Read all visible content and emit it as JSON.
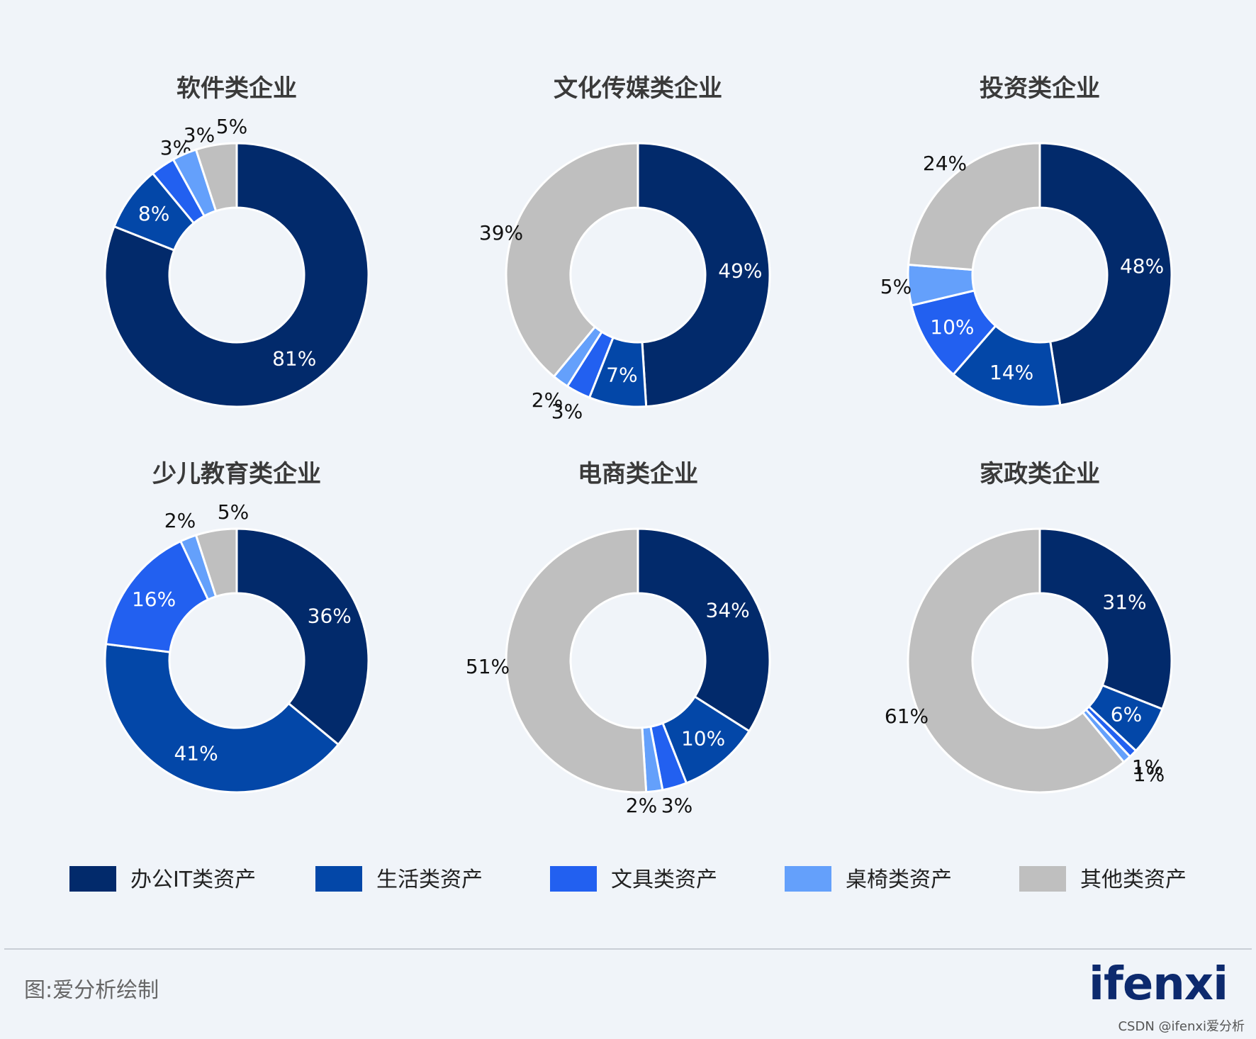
{
  "chart_data": [
    {
      "type": "pie",
      "title": "软件类企业",
      "categories": [
        "办公IT类资产",
        "生活类资产",
        "文具类资产",
        "桌椅类资产",
        "其他类资产"
      ],
      "values": [
        81,
        8,
        3,
        3,
        5
      ],
      "labels": [
        "81%",
        "8%",
        "3%",
        "3%",
        "5%"
      ]
    },
    {
      "type": "pie",
      "title": "文化传媒类企业",
      "categories": [
        "办公IT类资产",
        "生活类资产",
        "文具类资产",
        "桌椅类资产",
        "其他类资产"
      ],
      "values": [
        49,
        7,
        3,
        2,
        39
      ],
      "labels": [
        "49%",
        "7%",
        "3%",
        "2%",
        "39%"
      ]
    },
    {
      "type": "pie",
      "title": "投资类企业",
      "categories": [
        "办公IT类资产",
        "生活类资产",
        "文具类资产",
        "桌椅类资产",
        "其他类资产"
      ],
      "values": [
        48,
        14,
        10,
        5,
        24
      ],
      "labels": [
        "48%",
        "14%",
        "10%",
        "5%",
        "24%"
      ]
    },
    {
      "type": "pie",
      "title": "少儿教育类企业",
      "categories": [
        "办公IT类资产",
        "生活类资产",
        "文具类资产",
        "桌椅类资产",
        "其他类资产"
      ],
      "values": [
        36,
        41,
        16,
        2,
        5
      ],
      "labels": [
        "36%",
        "41%",
        "16%",
        "2%",
        "5%"
      ]
    },
    {
      "type": "pie",
      "title": "电商类企业",
      "categories": [
        "办公IT类资产",
        "生活类资产",
        "文具类资产",
        "桌椅类资产",
        "其他类资产"
      ],
      "values": [
        34,
        10,
        3,
        2,
        51
      ],
      "labels": [
        "34%",
        "10%",
        "3%",
        "2%",
        "51%"
      ]
    },
    {
      "type": "pie",
      "title": "家政类企业",
      "categories": [
        "办公IT类资产",
        "生活类资产",
        "文具类资产",
        "桌椅类资产",
        "其他类资产"
      ],
      "values": [
        31,
        6,
        1,
        1,
        61
      ],
      "labels": [
        "31%",
        "6%",
        "1%",
        "1%",
        "61%"
      ]
    }
  ],
  "legend": {
    "placement": "bottom",
    "items": [
      {
        "label": "办公IT类资产",
        "color": "#022a6b"
      },
      {
        "label": "生活类资产",
        "color": "#0347a8"
      },
      {
        "label": "文具类资产",
        "color": "#2260f0"
      },
      {
        "label": "桌椅类资产",
        "color": "#64a0fb"
      },
      {
        "label": "其他类资产",
        "color": "#bfbfbf"
      }
    ]
  },
  "footer": {
    "source": "图:爱分析绘制",
    "brand": "ifenxi",
    "watermark": "CSDN @ifenxi爱分析"
  }
}
